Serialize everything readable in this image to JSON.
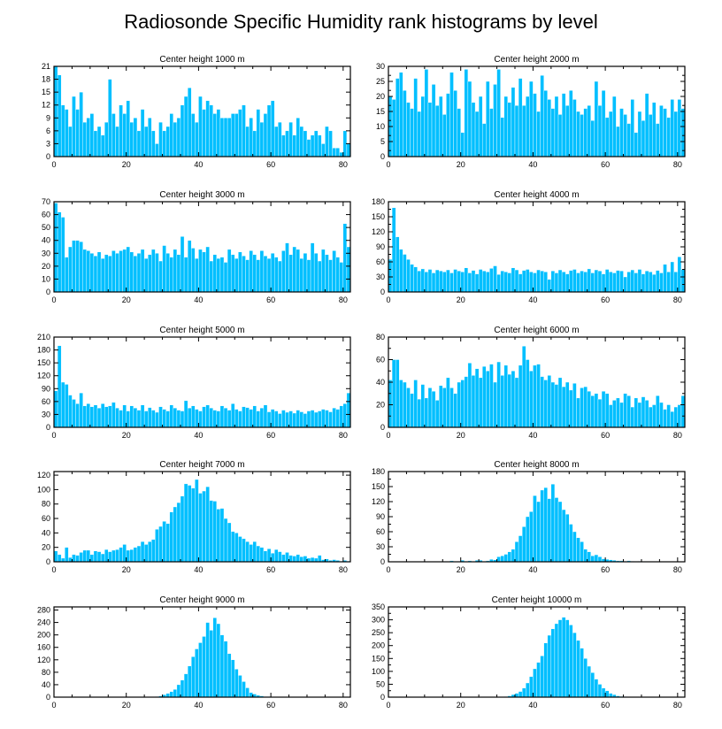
{
  "figure": {
    "title": "Radiosonde Specific Humidity rank histograms by level",
    "bar_color": "#00BFFF",
    "frame_color": "#000000"
  },
  "chart_data": [
    {
      "type": "bar",
      "title": "Center height 1000 m",
      "xlim": [
        0,
        82
      ],
      "ylim": [
        0,
        21
      ],
      "xticks": [
        0,
        20,
        40,
        60,
        80
      ],
      "yticks": [
        0,
        3,
        6,
        9,
        12,
        15,
        18,
        21
      ],
      "x_start": 0,
      "values": [
        21,
        19,
        12,
        11,
        7,
        14,
        11,
        15,
        8,
        9,
        10,
        6,
        7,
        5,
        8,
        18,
        10,
        7,
        12,
        10,
        13,
        8,
        9,
        6,
        11,
        7,
        9,
        6,
        3,
        8,
        6,
        7,
        10,
        8,
        9,
        12,
        14,
        16,
        10,
        8,
        14,
        11,
        13,
        12,
        10,
        11,
        9,
        9,
        9,
        10,
        10,
        11,
        12,
        7,
        9,
        6,
        11,
        8,
        10,
        12,
        13,
        7,
        8,
        5,
        6,
        8,
        5,
        9,
        7,
        6,
        4,
        5,
        6,
        5,
        3,
        7,
        6,
        2,
        2,
        1,
        6,
        3
      ]
    },
    {
      "type": "bar",
      "title": "Center height 2000 m",
      "xlim": [
        0,
        82
      ],
      "ylim": [
        0,
        30
      ],
      "xticks": [
        0,
        20,
        40,
        60,
        80
      ],
      "yticks": [
        0,
        2,
        5,
        7,
        10,
        12,
        15,
        17,
        20,
        22,
        25,
        27,
        30
      ],
      "y_labeled_ticks": [
        0,
        5,
        10,
        15,
        20,
        25,
        30
      ],
      "x_start": 0,
      "values": [
        20,
        19,
        26,
        28,
        22,
        18,
        16,
        26,
        15,
        20,
        29,
        18,
        24,
        17,
        20,
        14,
        21,
        28,
        22,
        16,
        8,
        29,
        25,
        18,
        15,
        20,
        11,
        25,
        16,
        24,
        29,
        13,
        20,
        18,
        23,
        17,
        26,
        17,
        20,
        25,
        21,
        15,
        27,
        22,
        19,
        16,
        20,
        14,
        21,
        17,
        22,
        19,
        15,
        14,
        16,
        17,
        12,
        25,
        17,
        22,
        13,
        15,
        20,
        10,
        16,
        14,
        11,
        19,
        8,
        15,
        12,
        21,
        14,
        18,
        11,
        17,
        16,
        13,
        19,
        15,
        19,
        16
      ]
    },
    {
      "type": "bar",
      "title": "Center height 3000 m",
      "xlim": [
        0,
        82
      ],
      "ylim": [
        0,
        70
      ],
      "xticks": [
        0,
        20,
        40,
        60,
        80
      ],
      "yticks": [
        0,
        10,
        20,
        30,
        40,
        50,
        60,
        70
      ],
      "x_start": 0,
      "values": [
        69,
        62,
        58,
        27,
        35,
        40,
        40,
        39,
        33,
        32,
        30,
        28,
        31,
        26,
        29,
        28,
        32,
        30,
        32,
        33,
        35,
        31,
        28,
        30,
        33,
        26,
        29,
        33,
        30,
        24,
        36,
        30,
        27,
        33,
        29,
        43,
        27,
        40,
        34,
        26,
        33,
        31,
        35,
        24,
        29,
        26,
        27,
        23,
        33,
        29,
        26,
        31,
        28,
        25,
        32,
        29,
        25,
        32,
        28,
        26,
        30,
        27,
        24,
        32,
        38,
        29,
        35,
        33,
        26,
        30,
        25,
        38,
        30,
        24,
        33,
        29,
        25,
        32,
        27,
        23,
        53,
        35
      ]
    },
    {
      "type": "bar",
      "title": "Center height 4000 m",
      "xlim": [
        0,
        82
      ],
      "ylim": [
        0,
        180
      ],
      "xticks": [
        0,
        20,
        40,
        60,
        80
      ],
      "yticks": [
        0,
        15,
        30,
        45,
        60,
        75,
        90,
        105,
        120,
        135,
        150,
        165,
        180
      ],
      "y_labeled_ticks": [
        0,
        30,
        60,
        90,
        120,
        150,
        180
      ],
      "x_start": 0,
      "values": [
        65,
        168,
        110,
        85,
        75,
        65,
        55,
        50,
        42,
        46,
        40,
        45,
        38,
        44,
        42,
        40,
        44,
        38,
        45,
        42,
        40,
        48,
        38,
        43,
        36,
        45,
        42,
        40,
        47,
        52,
        35,
        42,
        40,
        38,
        48,
        44,
        36,
        43,
        45,
        40,
        38,
        44,
        42,
        40,
        25,
        42,
        38,
        44,
        40,
        36,
        43,
        45,
        38,
        42,
        40,
        46,
        38,
        44,
        42,
        36,
        45,
        40,
        38,
        43,
        42,
        30,
        40,
        44,
        38,
        45,
        36,
        42,
        40,
        35,
        43,
        38,
        55,
        40,
        60,
        40,
        70,
        45
      ]
    },
    {
      "type": "bar",
      "title": "Center height 5000 m",
      "xlim": [
        0,
        82
      ],
      "ylim": [
        0,
        210
      ],
      "xticks": [
        0,
        20,
        40,
        60,
        80
      ],
      "yticks": [
        0,
        30,
        60,
        90,
        120,
        150,
        180,
        210
      ],
      "x_start": 0,
      "values": [
        85,
        190,
        105,
        100,
        75,
        65,
        55,
        80,
        50,
        55,
        48,
        52,
        45,
        55,
        48,
        50,
        58,
        45,
        40,
        52,
        38,
        50,
        45,
        40,
        52,
        38,
        46,
        40,
        35,
        48,
        42,
        38,
        52,
        45,
        40,
        38,
        62,
        45,
        50,
        42,
        38,
        48,
        52,
        45,
        40,
        38,
        50,
        45,
        40,
        55,
        42,
        38,
        48,
        46,
        42,
        50,
        38,
        45,
        52,
        36,
        42,
        38,
        32,
        40,
        35,
        38,
        33,
        40,
        36,
        32,
        38,
        40,
        35,
        38,
        42,
        40,
        36,
        45,
        42,
        50,
        55,
        80
      ]
    },
    {
      "type": "bar",
      "title": "Center height 6000 m",
      "xlim": [
        0,
        82
      ],
      "ylim": [
        0,
        80
      ],
      "xticks": [
        0,
        20,
        40,
        60,
        80
      ],
      "yticks": [
        0,
        10,
        20,
        30,
        40,
        50,
        60,
        70,
        80
      ],
      "y_labeled_ticks": [
        0,
        20,
        40,
        60,
        80
      ],
      "x_start": 0,
      "values": [
        42,
        60,
        60,
        42,
        40,
        35,
        30,
        42,
        25,
        38,
        26,
        35,
        32,
        24,
        37,
        35,
        44,
        35,
        30,
        40,
        42,
        45,
        57,
        46,
        52,
        44,
        54,
        50,
        56,
        40,
        58,
        46,
        55,
        47,
        50,
        44,
        55,
        72,
        60,
        50,
        55,
        56,
        45,
        42,
        46,
        40,
        38,
        44,
        36,
        40,
        33,
        39,
        26,
        35,
        36,
        32,
        28,
        30,
        25,
        32,
        30,
        20,
        24,
        26,
        22,
        30,
        28,
        18,
        26,
        22,
        27,
        24,
        18,
        20,
        28,
        22,
        16,
        20,
        14,
        18,
        20,
        28
      ]
    },
    {
      "type": "bar",
      "title": "Center height 7000 m",
      "xlim": [
        0,
        82
      ],
      "ylim": [
        0,
        125
      ],
      "xticks": [
        0,
        20,
        40,
        60,
        80
      ],
      "yticks": [
        0,
        20,
        40,
        60,
        80,
        100,
        120
      ],
      "x_start": 0,
      "values": [
        15,
        10,
        5,
        20,
        6,
        10,
        9,
        13,
        16,
        16,
        10,
        15,
        14,
        11,
        17,
        14,
        16,
        17,
        20,
        24,
        16,
        17,
        20,
        22,
        28,
        24,
        28,
        31,
        45,
        49,
        56,
        53,
        69,
        76,
        82,
        91,
        108,
        106,
        102,
        114,
        95,
        98,
        104,
        85,
        84,
        73,
        74,
        60,
        54,
        42,
        40,
        35,
        32,
        28,
        24,
        28,
        22,
        20,
        15,
        18,
        12,
        17,
        14,
        10,
        13,
        9,
        8,
        10,
        7,
        8,
        5,
        6,
        5,
        9,
        3,
        4,
        2,
        3,
        2,
        1,
        2,
        1
      ]
    },
    {
      "type": "bar",
      "title": "Center height 8000 m",
      "xlim": [
        0,
        82
      ],
      "ylim": [
        0,
        180
      ],
      "xticks": [
        0,
        20,
        40,
        60,
        80
      ],
      "yticks": [
        0,
        15,
        30,
        45,
        60,
        75,
        90,
        105,
        120,
        135,
        150,
        165,
        180
      ],
      "y_labeled_ticks": [
        0,
        30,
        60,
        90,
        120,
        150,
        180
      ],
      "x_start": 0,
      "values": [
        0,
        0,
        0,
        0,
        0,
        0,
        0,
        0,
        0,
        0,
        0,
        0,
        0,
        0,
        0,
        0,
        0,
        2,
        0,
        1,
        3,
        0,
        2,
        0,
        3,
        3,
        0,
        2,
        5,
        4,
        10,
        12,
        15,
        20,
        25,
        40,
        52,
        70,
        90,
        100,
        132,
        120,
        143,
        148,
        126,
        155,
        128,
        120,
        104,
        95,
        75,
        60,
        48,
        40,
        25,
        20,
        12,
        14,
        10,
        6,
        5,
        4,
        3,
        2,
        2,
        1,
        2,
        1,
        0,
        1,
        0,
        0,
        0,
        0,
        0,
        0,
        0,
        0,
        0,
        0,
        0,
        0
      ]
    },
    {
      "type": "bar",
      "title": "Center height 9000 m",
      "xlim": [
        0,
        82
      ],
      "ylim": [
        0,
        290
      ],
      "xticks": [
        0,
        20,
        40,
        60,
        80
      ],
      "yticks": [
        0,
        40,
        80,
        120,
        160,
        200,
        240,
        280
      ],
      "x_start": 0,
      "values": [
        0,
        0,
        0,
        0,
        0,
        0,
        0,
        0,
        0,
        0,
        0,
        0,
        0,
        0,
        0,
        0,
        0,
        0,
        0,
        0,
        0,
        0,
        0,
        0,
        0,
        0,
        0,
        0,
        2,
        4,
        8,
        12,
        18,
        25,
        40,
        55,
        75,
        100,
        130,
        155,
        175,
        195,
        240,
        215,
        255,
        236,
        200,
        180,
        140,
        120,
        90,
        70,
        50,
        30,
        15,
        10,
        6,
        4,
        2,
        2,
        1,
        0,
        0,
        0,
        0,
        0,
        0,
        0,
        0,
        0,
        0,
        0,
        0,
        0,
        0,
        0,
        0,
        0,
        0,
        0,
        0,
        0
      ]
    },
    {
      "type": "bar",
      "title": "Center height 10000 m",
      "xlim": [
        0,
        82
      ],
      "ylim": [
        0,
        350
      ],
      "xticks": [
        0,
        20,
        40,
        60,
        80
      ],
      "yticks": [
        0,
        25,
        50,
        75,
        100,
        125,
        150,
        175,
        200,
        225,
        250,
        275,
        300,
        325,
        350
      ],
      "y_labeled_ticks": [
        0,
        50,
        100,
        150,
        200,
        250,
        300,
        350
      ],
      "x_start": 0,
      "values": [
        0,
        0,
        0,
        0,
        0,
        0,
        0,
        0,
        0,
        0,
        0,
        0,
        0,
        0,
        0,
        0,
        0,
        0,
        0,
        0,
        0,
        0,
        0,
        0,
        0,
        0,
        0,
        0,
        0,
        0,
        0,
        0,
        2,
        5,
        10,
        15,
        22,
        35,
        55,
        80,
        110,
        135,
        160,
        210,
        240,
        265,
        285,
        300,
        310,
        300,
        280,
        250,
        220,
        190,
        150,
        120,
        95,
        70,
        50,
        35,
        25,
        15,
        10,
        5,
        3,
        2,
        1,
        0,
        0,
        0,
        0,
        0,
        0,
        0,
        0,
        0,
        0,
        0,
        0,
        0,
        0,
        0
      ]
    }
  ]
}
